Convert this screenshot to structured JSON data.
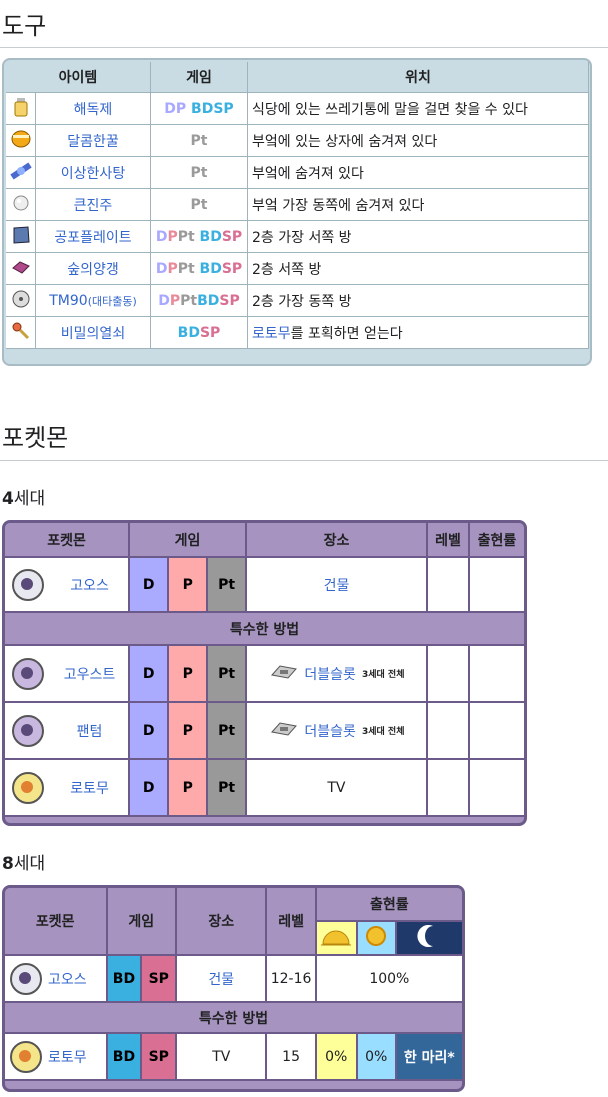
{
  "sections": {
    "items_heading": "도구",
    "pokemon_heading": "포켓몬",
    "gen4_heading_num": "4",
    "gen4_heading_text": "세대",
    "gen8_heading_num": "8",
    "gen8_heading_text": "세대"
  },
  "items_table": {
    "headers": [
      "아이템",
      "게임",
      "위치"
    ],
    "rows": [
      {
        "icon": "potion-icon",
        "name": "해독제",
        "games": [
          {
            "t": "DP",
            "c": "gD"
          },
          {
            "t": " BDSP",
            "c": "gBD"
          }
        ],
        "loc": "식당에 있는 쓰레기통에 말을 걸면 찾을 수 있다"
      },
      {
        "icon": "honey-icon",
        "name": "달콤한꿀",
        "games": [
          {
            "t": "Pt",
            "c": "gPt"
          }
        ],
        "loc": "부엌에 있는 상자에 숨겨져 있다"
      },
      {
        "icon": "candy-icon",
        "name": "이상한사탕",
        "games": [
          {
            "t": "Pt",
            "c": "gPt"
          }
        ],
        "loc": "부엌에 숨겨져 있다"
      },
      {
        "icon": "pearl-icon",
        "name": "큰진주",
        "games": [
          {
            "t": "Pt",
            "c": "gPt"
          }
        ],
        "loc": "부엌 가장 동쪽에 숨겨져 있다"
      },
      {
        "icon": "plate-icon",
        "name": "공포플레이트",
        "games": [
          {
            "t": "D",
            "c": "gD"
          },
          {
            "t": "P",
            "c": "gP"
          },
          {
            "t": "Pt",
            "c": "gPt"
          },
          {
            "t": " BD",
            "c": "gBD"
          },
          {
            "t": "SP",
            "c": "gSP"
          }
        ],
        "loc": "2층 가장 서쪽 방"
      },
      {
        "icon": "mulch-icon",
        "name": "숲의양갱",
        "games": [
          {
            "t": "D",
            "c": "gD"
          },
          {
            "t": "P",
            "c": "gP"
          },
          {
            "t": "Pt",
            "c": "gPt"
          },
          {
            "t": " BD",
            "c": "gBD"
          },
          {
            "t": "SP",
            "c": "gSP"
          }
        ],
        "loc": "2층 서쪽 방"
      },
      {
        "icon": "disc-icon",
        "name": "TM90",
        "name_sub": "(대타출동)",
        "games": [
          {
            "t": "D",
            "c": "gD"
          },
          {
            "t": "P",
            "c": "gP"
          },
          {
            "t": "Pt",
            "c": "gPt"
          },
          {
            "t": "BD",
            "c": "gBD"
          },
          {
            "t": "SP",
            "c": "gSP"
          }
        ],
        "loc": "2층 가장 동쪽 방"
      },
      {
        "icon": "key-icon",
        "name": "비밀의열쇠",
        "games": [
          {
            "t": "BD",
            "c": "gBD"
          },
          {
            "t": "SP",
            "c": "gSP"
          }
        ],
        "loc_link": "로토무",
        "loc": "를 포획하면 얻는다"
      }
    ]
  },
  "gen4_table": {
    "headers": [
      "포켓몬",
      "게임",
      "장소",
      "레벨",
      "출현률"
    ],
    "rows": [
      {
        "icon": "gastly-icon",
        "name": "고오스",
        "d": "D",
        "p": "P",
        "pt": "Pt",
        "loc": "건물",
        "loc_link": true
      }
    ],
    "special_label": "특수한 방법",
    "special_rows": [
      {
        "icon": "haunter-icon",
        "name": "고우스트",
        "d": "D",
        "p": "P",
        "pt": "Pt",
        "loc": "더블슬롯",
        "loc_sub": "3세대 전체",
        "loc_icon": "cartridge-icon"
      },
      {
        "icon": "gengar-icon",
        "name": "팬텀",
        "d": "D",
        "p": "P",
        "pt": "Pt",
        "loc": "더블슬롯",
        "loc_sub": "3세대 전체",
        "loc_icon": "cartridge-icon"
      },
      {
        "icon": "rotom-icon",
        "name": "로토무",
        "d": "D",
        "p": "P",
        "pt": "Pt",
        "loc": "TV"
      }
    ]
  },
  "gen8_table": {
    "headers": [
      "포켓몬",
      "게임",
      "장소",
      "레벨",
      "출현률"
    ],
    "time_icons": [
      "morning-icon",
      "day-icon",
      "night-icon"
    ],
    "rows": [
      {
        "icon": "gastly-icon",
        "name": "고오스",
        "bd": "BD",
        "sp": "SP",
        "loc": "건물",
        "level": "12-16",
        "rate": "100%"
      }
    ],
    "special_label": "특수한 방법",
    "special_rows": [
      {
        "icon": "rotom-icon",
        "name": "로토무",
        "bd": "BD",
        "sp": "SP",
        "loc": "TV",
        "level": "15",
        "morning": "0%",
        "day": "0%",
        "night": "한 마리*"
      }
    ]
  }
}
